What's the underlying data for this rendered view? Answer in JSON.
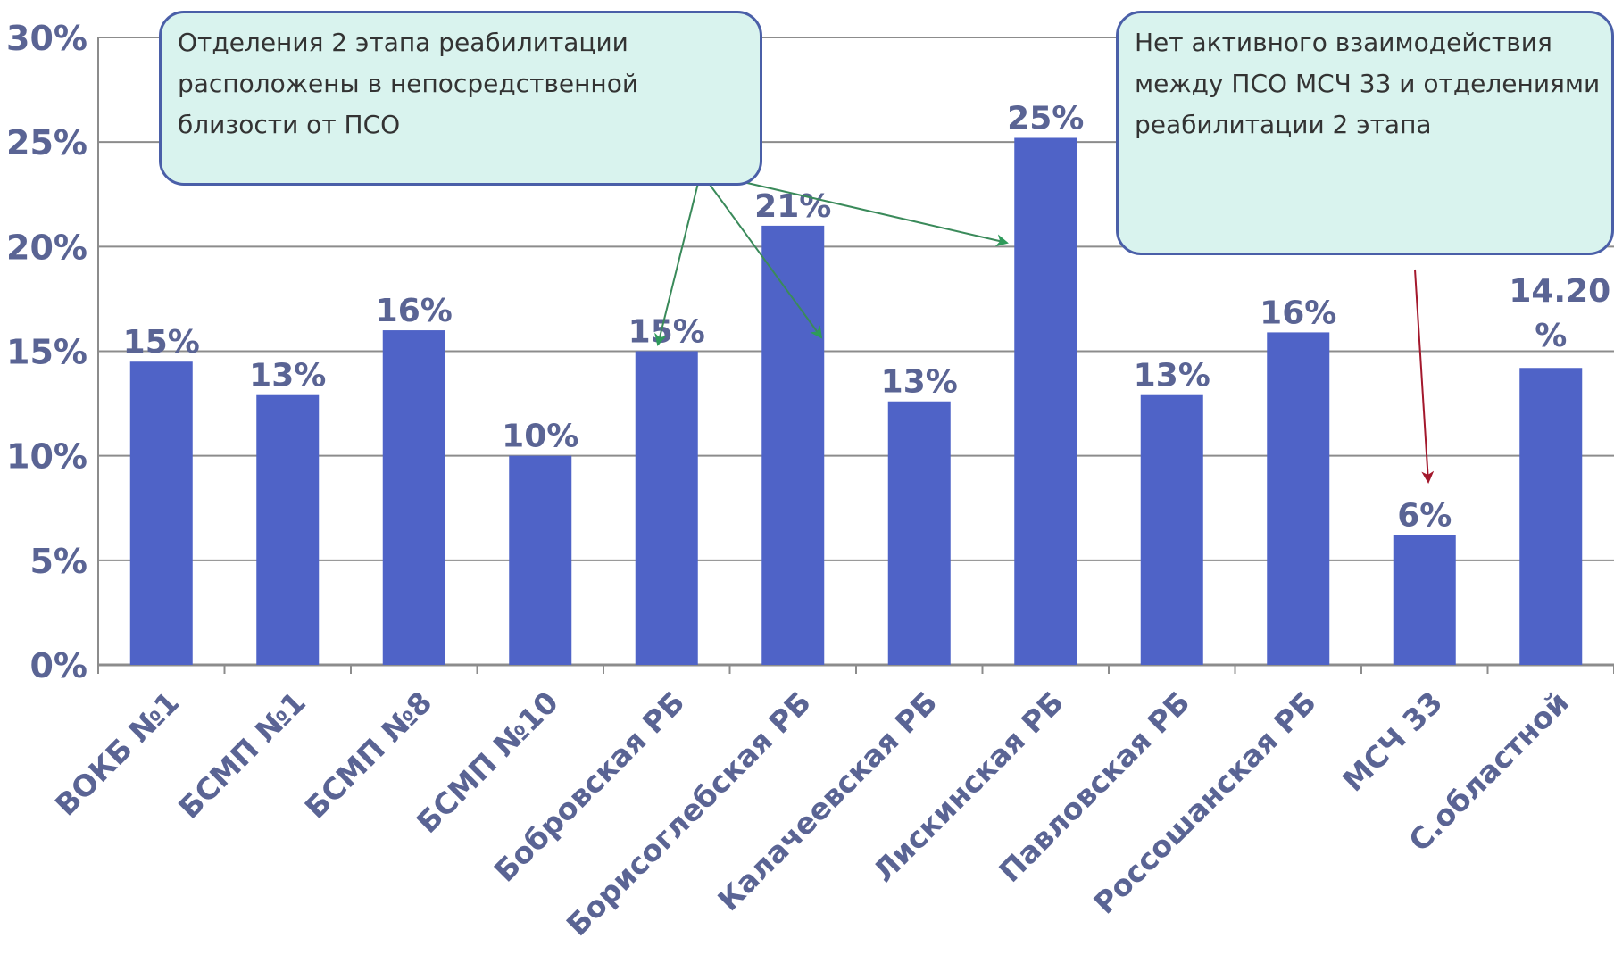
{
  "chart_data": {
    "type": "bar",
    "categories": [
      "ВОКБ №1",
      "БСМП №1",
      "БСМП №8",
      "БСМП №10",
      "Бобровская РБ",
      "Борисоглебская РБ",
      "Калачеевская РБ",
      "Лискинская РБ",
      "Павловская РБ",
      "Россошанская РБ",
      "МСЧ 33",
      "С.областной"
    ],
    "values": [
      14.5,
      12.9,
      16.0,
      10.0,
      15.0,
      21.0,
      12.6,
      25.2,
      12.9,
      15.9,
      6.2,
      14.2
    ],
    "data_labels": [
      "15%",
      "13%",
      "16%",
      "10%",
      "15%",
      "21%",
      "13%",
      "25%",
      "13%",
      "16%",
      "6%",
      "14.20 %"
    ],
    "yticks": [
      "0%",
      "5%",
      "10%",
      "15%",
      "20%",
      "25%",
      "30%"
    ],
    "ylim": [
      0,
      30
    ],
    "grid": true,
    "bar_color": "#4f63c7",
    "label_color": "#5a6494",
    "annotations": [
      "Отделения 2 этапа реабилитации расположены в непосредственной близости от ПСО",
      "Нет активного взаимодействия между ПСО МСЧ 33 и отделениями реабилитации 2 этапа"
    ]
  }
}
